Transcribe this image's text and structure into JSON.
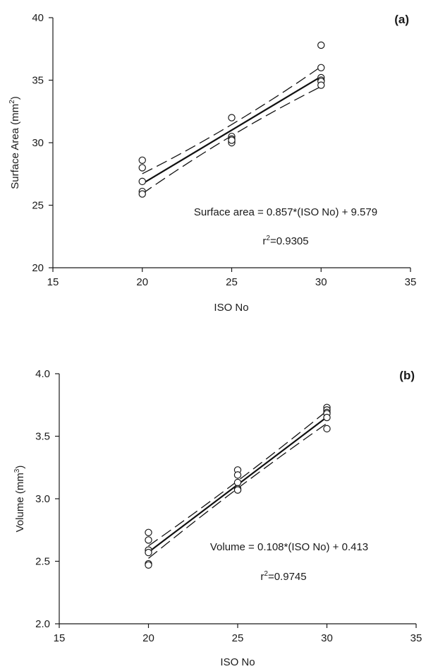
{
  "chart_data": [
    {
      "type": "scatter",
      "panel_label": "(a)",
      "xlabel": "ISO No",
      "ylabel_main": "Surface Area (mm",
      "ylabel_sup": "2",
      "ylabel_tail": ")",
      "xlim": [
        15,
        35
      ],
      "ylim": [
        20,
        40
      ],
      "xticks": [
        15,
        20,
        25,
        30,
        35
      ],
      "yticks": [
        20,
        25,
        30,
        35,
        40
      ],
      "tick_decimals": 0,
      "series": [
        {
          "x": [
            20,
            20,
            20,
            20,
            20,
            25,
            25,
            25,
            25,
            25,
            25,
            30,
            30,
            30,
            30,
            30,
            30
          ],
          "y": [
            28.6,
            28.0,
            26.9,
            26.1,
            25.9,
            32.0,
            30.5,
            30.3,
            30.1,
            30.0,
            30.2,
            37.8,
            36.0,
            35.2,
            35.0,
            34.9,
            34.6
          ]
        }
      ],
      "fit": {
        "slope": 0.857,
        "intercept": 9.579,
        "x_range": [
          20,
          30
        ],
        "ci_at_ends": [
          0.8,
          0.8
        ],
        "ci_mid": 0.45
      },
      "equation": "Surface area = 0.857*(ISO No) + 9.579",
      "r2_prefix": "r",
      "r2_sup": "2",
      "r2_value": "=0.9305"
    },
    {
      "type": "scatter",
      "panel_label": "(b)",
      "xlabel": "ISO No",
      "ylabel_main": "Volume (mm",
      "ylabel_sup": "3",
      "ylabel_tail": ")",
      "xlim": [
        15,
        35
      ],
      "ylim": [
        2.0,
        4.0
      ],
      "xticks": [
        15,
        20,
        25,
        30,
        35
      ],
      "yticks": [
        2.0,
        2.5,
        3.0,
        3.5,
        4.0
      ],
      "tick_decimals": 1,
      "series": [
        {
          "x": [
            20,
            20,
            20,
            20,
            20,
            20,
            25,
            25,
            25,
            25,
            25,
            25,
            30,
            30,
            30,
            30,
            30,
            30
          ],
          "y": [
            2.73,
            2.67,
            2.59,
            2.57,
            2.48,
            2.47,
            3.23,
            3.19,
            3.13,
            3.08,
            3.07,
            3.07,
            3.73,
            3.71,
            3.69,
            3.68,
            3.65,
            3.56
          ]
        }
      ],
      "fit": {
        "slope": 0.108,
        "intercept": 0.413,
        "x_range": [
          20,
          30
        ],
        "ci_at_ends": [
          0.05,
          0.05
        ],
        "ci_mid": 0.03
      },
      "equation": "Volume = 0.108*(ISO No) + 0.413",
      "r2_prefix": "r",
      "r2_sup": "2",
      "r2_value": "=0.9745"
    }
  ]
}
